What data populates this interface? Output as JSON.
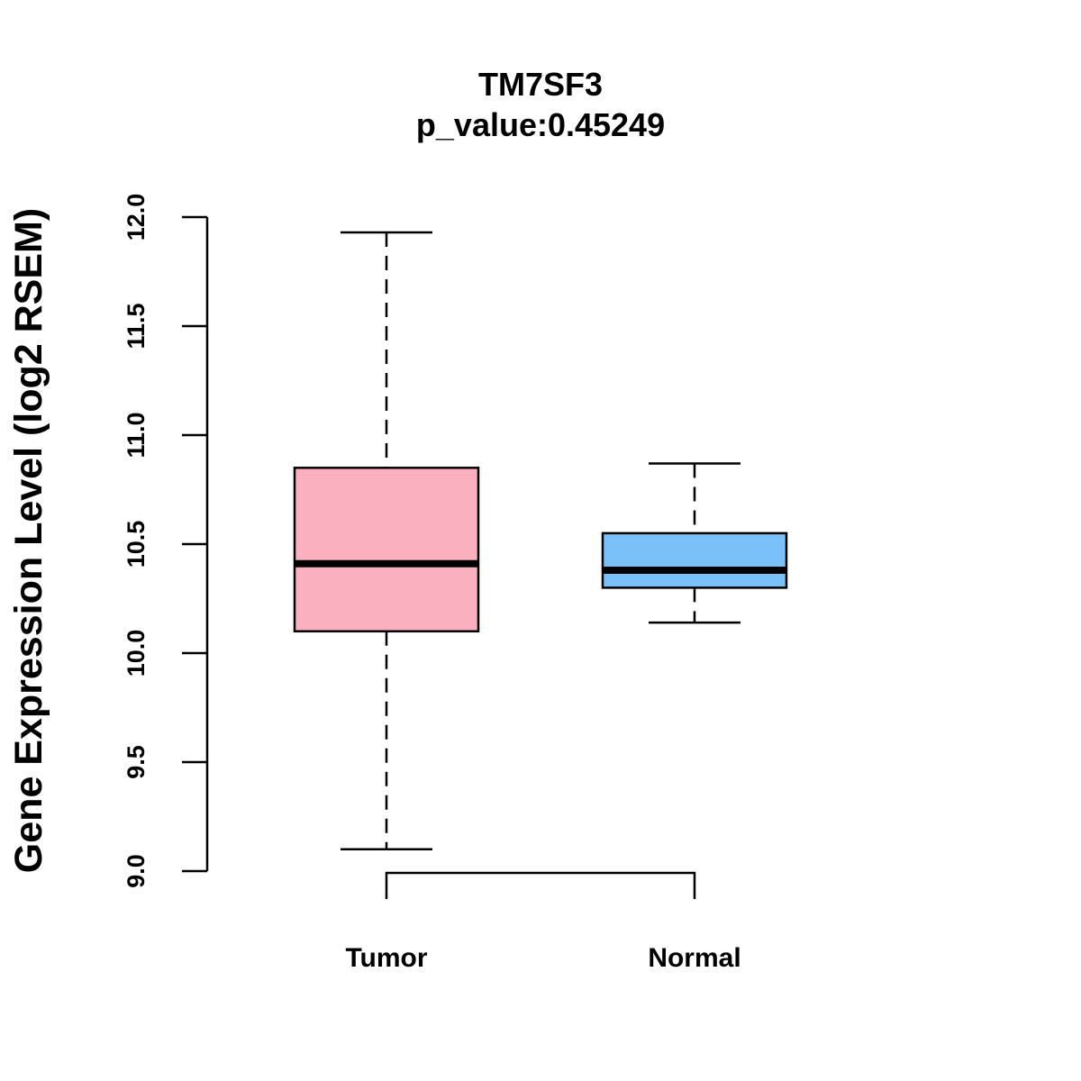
{
  "chart_data": {
    "type": "boxplot",
    "title": "TM7SF3",
    "subtitle": "p_value:0.45249",
    "xlabel": "",
    "ylabel": "Gene Expression Level (log2 RSEM)",
    "ylim": [
      9.0,
      12.0
    ],
    "yticks": [
      9.0,
      9.5,
      10.0,
      10.5,
      11.0,
      11.5,
      12.0
    ],
    "ytick_labels": [
      "9.0",
      "9.5",
      "10.0",
      "10.5",
      "11.0",
      "11.5",
      "12.0"
    ],
    "grid": false,
    "categories": [
      "Tumor",
      "Normal"
    ],
    "series": [
      {
        "name": "Tumor",
        "color": "#FBB0C0",
        "whisker_low": 9.1,
        "q1": 10.1,
        "median": 10.41,
        "q3": 10.85,
        "whisker_high": 11.93
      },
      {
        "name": "Normal",
        "color": "#79C1F8",
        "whisker_low": 10.14,
        "q1": 10.3,
        "median": 10.38,
        "q3": 10.55,
        "whisker_high": 10.87
      }
    ],
    "comparison_bracket": [
      "Tumor",
      "Normal"
    ]
  }
}
